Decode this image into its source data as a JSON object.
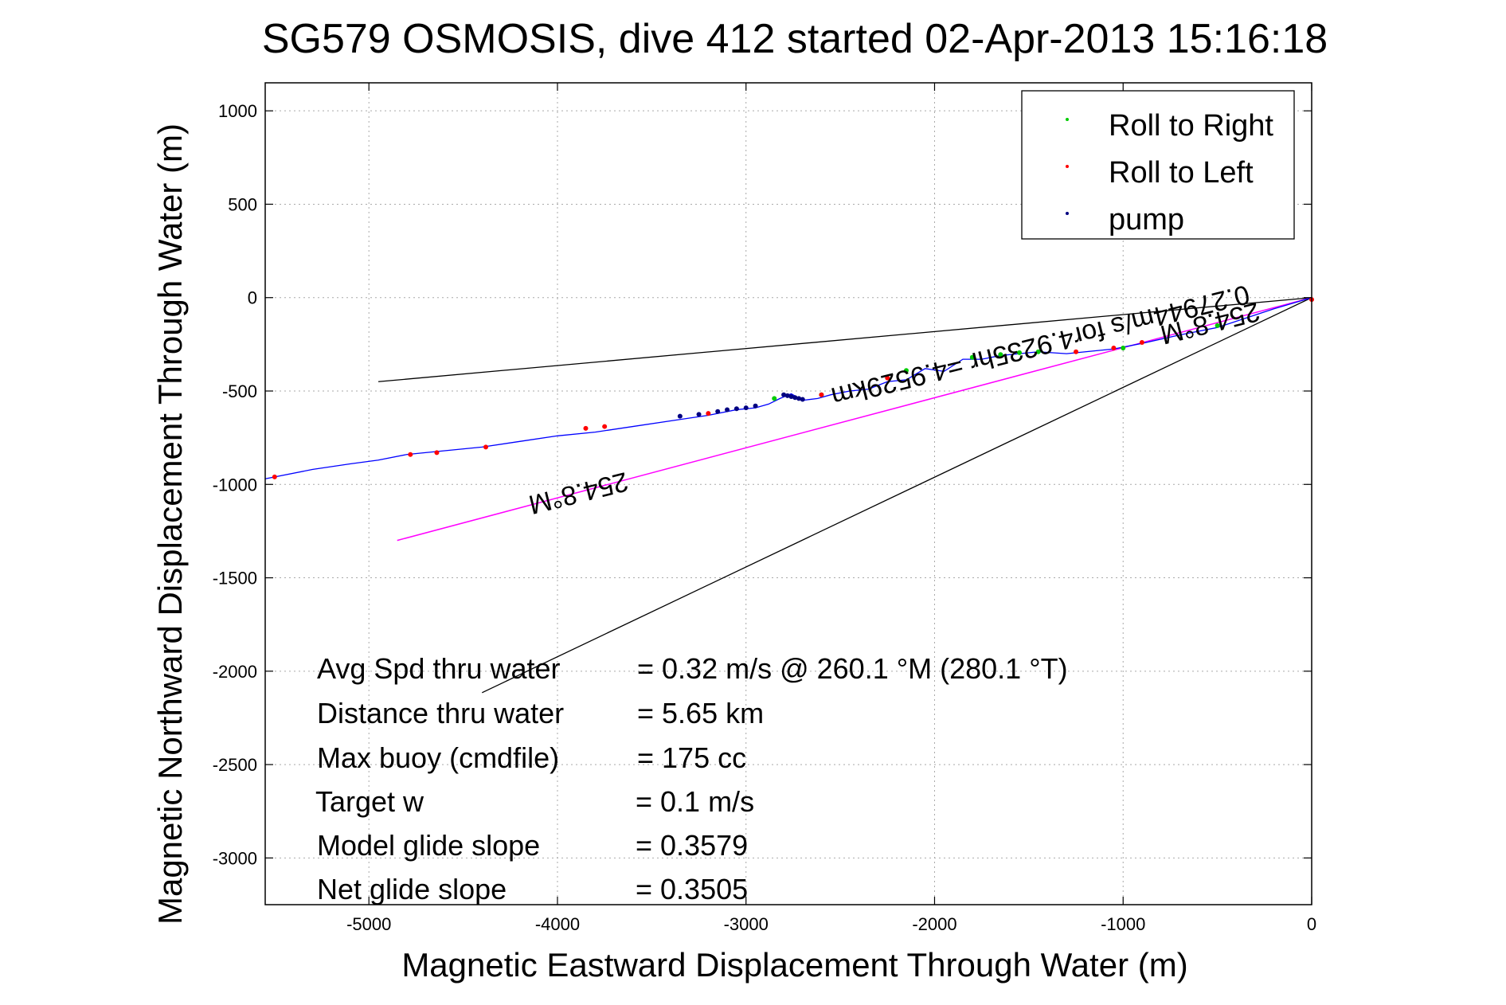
{
  "chart_data": {
    "type": "line",
    "title": "SG579 OSMOSIS, dive 412 started 02-Apr-2013 15:16:18",
    "xlabel": "Magnetic Eastward Displacement Through Water (m)",
    "ylabel": "Magnetic Northward Displacement Through Water (m)",
    "xlim": [
      -5550,
      0
    ],
    "ylim": [
      -3250,
      1150
    ],
    "xticks": [
      -5000,
      -4000,
      -3000,
      -2000,
      -1000,
      0
    ],
    "yticks": [
      1000,
      500,
      0,
      -500,
      -1000,
      -1500,
      -2000,
      -2500,
      -3000
    ],
    "grid": true,
    "legend_position": "top-right",
    "legend": [
      {
        "label": "Roll to Right",
        "color": "#00cc00"
      },
      {
        "label": "Roll to Left",
        "color": "#ff0000"
      },
      {
        "label": "pump",
        "color": "#000080"
      }
    ],
    "colors": {
      "track": "#0000ff",
      "net": "#ff00ff",
      "cone": "#000000"
    },
    "track": {
      "x": [
        0,
        -100,
        -200,
        -350,
        -500,
        -700,
        -900,
        -1050,
        -1200,
        -1300,
        -1450,
        -1550,
        -1650,
        -1750,
        -1850,
        -1950,
        -2050,
        -2150,
        -2250,
        -2350,
        -2450,
        -2550,
        -2620,
        -2700,
        -2760,
        -2820,
        -2880,
        -2950,
        -3050,
        -3200,
        -3400,
        -3600,
        -3800,
        -4000,
        -4200,
        -4400,
        -4550,
        -4700,
        -4800,
        -4950,
        -5100,
        -5300,
        -5550
      ],
      "y": [
        0,
        -30,
        -60,
        -110,
        -160,
        -200,
        -245,
        -275,
        -290,
        -300,
        -290,
        -300,
        -310,
        -330,
        -330,
        -395,
        -380,
        -440,
        -450,
        -490,
        -500,
        -520,
        -540,
        -550,
        -515,
        -540,
        -570,
        -590,
        -600,
        -630,
        -660,
        -690,
        -720,
        -740,
        -770,
        -800,
        -815,
        -830,
        -840,
        -870,
        -890,
        -920,
        -970
      ]
    },
    "roll_right": {
      "x": [
        -500,
        -1000,
        -1450,
        -1550,
        -1650,
        -1800,
        -2150,
        -2600,
        -2850
      ],
      "y": [
        -150,
        -270,
        -290,
        -295,
        -305,
        -320,
        -390,
        -520,
        -540
      ]
    },
    "roll_left": {
      "x": [
        0,
        -900,
        -1050,
        -1250,
        -2250,
        -2600,
        -3200,
        -3750,
        -3850,
        -4380,
        -4640,
        -4780,
        -5500
      ],
      "y": [
        -10,
        -240,
        -270,
        -290,
        -430,
        -520,
        -620,
        -690,
        -700,
        -800,
        -830,
        -840,
        -960
      ]
    },
    "pump": {
      "x": [
        -2800,
        -2780,
        -2760,
        -2740,
        -2720,
        -2700,
        -2950,
        -3000,
        -3050,
        -3100,
        -3150,
        -3250,
        -3350
      ],
      "y": [
        -520,
        -525,
        -530,
        -535,
        -540,
        -545,
        -580,
        -590,
        -595,
        -600,
        -610,
        -625,
        -635
      ]
    },
    "net_line": {
      "x": [
        0,
        -4850
      ],
      "y": [
        0,
        -1300
      ]
    },
    "cone_upper": {
      "x": [
        0,
        -4950
      ],
      "y": [
        0,
        -450
      ]
    },
    "cone_lower": {
      "x": [
        0,
        -4400
      ],
      "y": [
        0,
        -2115
      ]
    },
    "annotations": [
      {
        "text": "254.8°M",
        "x": -550,
        "y": -90,
        "rotate": 166
      },
      {
        "text": "0.27944m/s for4.9235hr =4.9529km",
        "x": -1450,
        "y": -210,
        "rotate": 166
      },
      {
        "text": "254.8°M",
        "x": -3900,
        "y": -1000,
        "rotate": 166
      }
    ],
    "stats": [
      {
        "label": "Avg Spd thru water",
        "value": "=  0.32 m/s @ 260.1 °M (280.1 °T)"
      },
      {
        "label": "Distance thru water",
        "value": "=  5.65 km"
      },
      {
        "label": "Max buoy (cmdfile)",
        "value": "= 175 cc"
      },
      {
        "label": "Target w",
        "value": "= 0.1 m/s"
      },
      {
        "label": "Model glide slope",
        "value": "= 0.3579"
      },
      {
        "label": "Net glide slope",
        "value": "= 0.3505"
      }
    ]
  }
}
